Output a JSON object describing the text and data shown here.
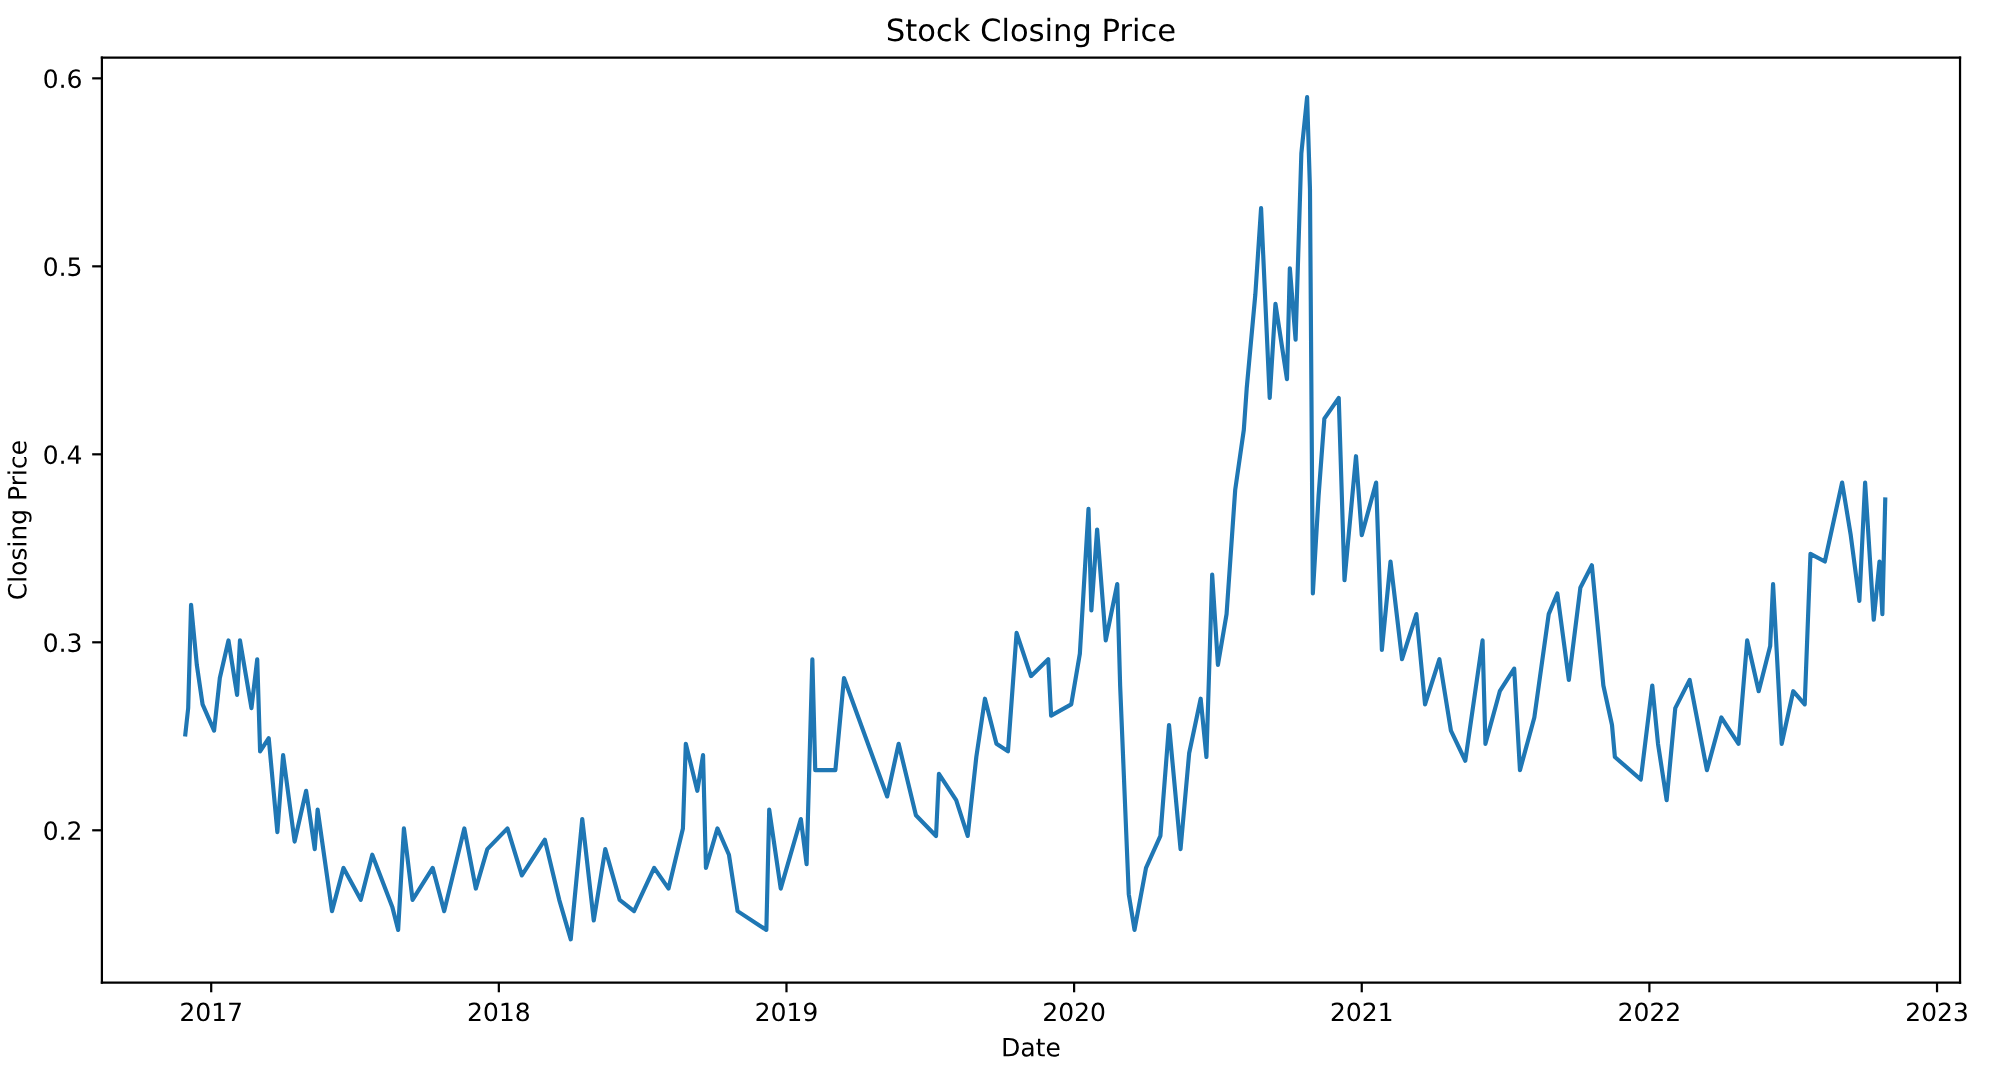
{
  "chart_data": {
    "type": "line",
    "title": "Stock Closing Price",
    "xlabel": "Date",
    "ylabel": "Closing Price",
    "xlim": [
      2016.62,
      2023.08
    ],
    "xticks": [
      2017,
      2018,
      2019,
      2020,
      2021,
      2022,
      2023
    ],
    "ylim": [
      0.119,
      0.611
    ],
    "yticks": [
      0.2,
      0.3,
      0.4,
      0.5,
      0.6
    ],
    "grid": false,
    "series": [
      {
        "color": "#1f77b4",
        "x": [
          2016.91,
          2016.92,
          2016.93,
          2016.95,
          2016.97,
          2017.01,
          2017.03,
          2017.06,
          2017.09,
          2017.1,
          2017.14,
          2017.16,
          2017.17,
          2017.2,
          2017.23,
          2017.25,
          2017.29,
          2017.33,
          2017.36,
          2017.37,
          2017.42,
          2017.46,
          2017.52,
          2017.56,
          2017.63,
          2017.65,
          2017.67,
          2017.7,
          2017.77,
          2017.81,
          2017.88,
          2017.92,
          2017.96,
          2018.03,
          2018.08,
          2018.16,
          2018.21,
          2018.25,
          2018.29,
          2018.33,
          2018.37,
          2018.42,
          2018.47,
          2018.54,
          2018.59,
          2018.64,
          2018.65,
          2018.69,
          2018.71,
          2018.72,
          2018.76,
          2018.8,
          2018.83,
          2018.93,
          2018.94,
          2018.98,
          2019.05,
          2019.07,
          2019.09,
          2019.1,
          2019.17,
          2019.2,
          2019.25,
          2019.35,
          2019.39,
          2019.45,
          2019.52,
          2019.53,
          2019.59,
          2019.63,
          2019.66,
          2019.69,
          2019.73,
          2019.77,
          2019.8,
          2019.85,
          2019.91,
          2019.92,
          2019.99,
          2020.02,
          2020.05,
          2020.06,
          2020.08,
          2020.11,
          2020.15,
          2020.16,
          2020.19,
          2020.21,
          2020.25,
          2020.3,
          2020.33,
          2020.37,
          2020.4,
          2020.44,
          2020.46,
          2020.48,
          2020.5,
          2020.53,
          2020.56,
          2020.59,
          2020.6,
          2020.63,
          2020.65,
          2020.68,
          2020.7,
          2020.74,
          2020.75,
          2020.77,
          2020.79,
          2020.81,
          2020.82,
          2020.83,
          2020.85,
          2020.87,
          2020.92,
          2020.94,
          2020.98,
          2021.0,
          2021.05,
          2021.07,
          2021.1,
          2021.14,
          2021.19,
          2021.22,
          2021.27,
          2021.31,
          2021.36,
          2021.42,
          2021.43,
          2021.48,
          2021.53,
          2021.55,
          2021.6,
          2021.65,
          2021.68,
          2021.72,
          2021.76,
          2021.8,
          2021.84,
          2021.87,
          2021.88,
          2021.97,
          2022.01,
          2022.03,
          2022.06,
          2022.09,
          2022.14,
          2022.2,
          2022.25,
          2022.31,
          2022.34,
          2022.38,
          2022.42,
          2022.43,
          2022.46,
          2022.5,
          2022.54,
          2022.56,
          2022.61,
          2022.67,
          2022.7,
          2022.73,
          2022.75,
          2022.78,
          2022.8,
          2022.81,
          2022.82
        ],
        "values": [
          0.251,
          0.265,
          0.32,
          0.288,
          0.267,
          0.253,
          0.281,
          0.301,
          0.272,
          0.301,
          0.265,
          0.291,
          0.242,
          0.249,
          0.199,
          0.24,
          0.194,
          0.221,
          0.19,
          0.211,
          0.157,
          0.18,
          0.163,
          0.187,
          0.159,
          0.147,
          0.201,
          0.163,
          0.18,
          0.157,
          0.201,
          0.169,
          0.19,
          0.201,
          0.176,
          0.195,
          0.163,
          0.142,
          0.206,
          0.152,
          0.19,
          0.163,
          0.157,
          0.18,
          0.169,
          0.201,
          0.246,
          0.221,
          0.24,
          0.18,
          0.201,
          0.187,
          0.157,
          0.147,
          0.211,
          0.169,
          0.206,
          0.182,
          0.291,
          0.232,
          0.232,
          0.281,
          0.26,
          0.218,
          0.246,
          0.208,
          0.197,
          0.23,
          0.216,
          0.197,
          0.239,
          0.27,
          0.246,
          0.242,
          0.305,
          0.282,
          0.291,
          0.261,
          0.267,
          0.294,
          0.371,
          0.317,
          0.36,
          0.301,
          0.331,
          0.277,
          0.166,
          0.147,
          0.18,
          0.197,
          0.256,
          0.19,
          0.241,
          0.27,
          0.239,
          0.336,
          0.288,
          0.315,
          0.381,
          0.413,
          0.435,
          0.485,
          0.531,
          0.43,
          0.48,
          0.44,
          0.499,
          0.461,
          0.56,
          0.59,
          0.541,
          0.326,
          0.378,
          0.419,
          0.43,
          0.333,
          0.399,
          0.357,
          0.385,
          0.296,
          0.343,
          0.291,
          0.315,
          0.267,
          0.291,
          0.253,
          0.237,
          0.301,
          0.246,
          0.274,
          0.286,
          0.232,
          0.26,
          0.315,
          0.326,
          0.28,
          0.329,
          0.341,
          0.277,
          0.256,
          0.239,
          0.227,
          0.277,
          0.246,
          0.216,
          0.265,
          0.28,
          0.232,
          0.26,
          0.246,
          0.301,
          0.274,
          0.298,
          0.331,
          0.246,
          0.274,
          0.267,
          0.347,
          0.343,
          0.385,
          0.357,
          0.322,
          0.385,
          0.312,
          0.343,
          0.315,
          0.376
        ]
      }
    ]
  }
}
